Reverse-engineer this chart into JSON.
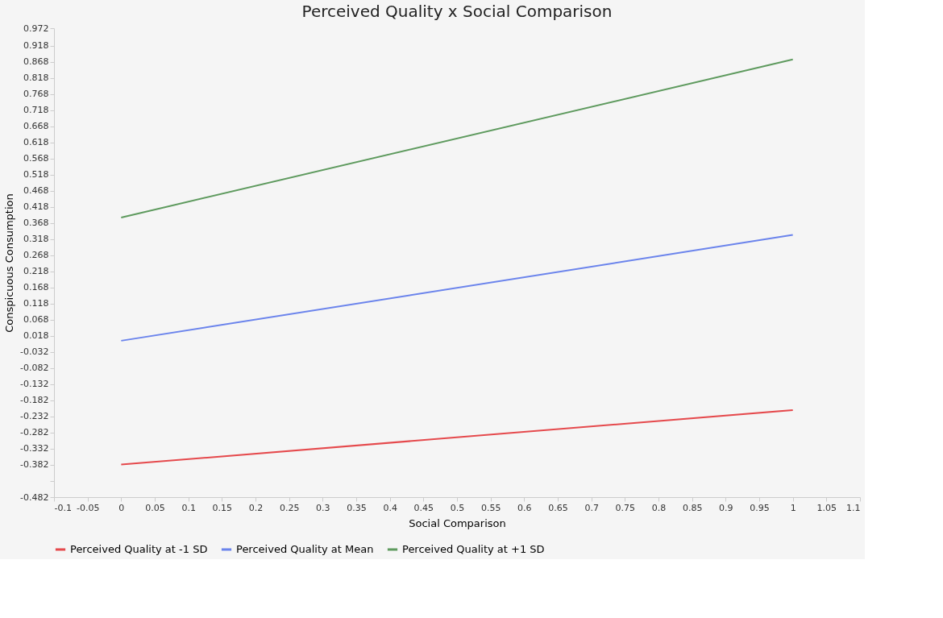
{
  "chart_data": {
    "type": "line",
    "title": "Perceived Quality x Social Comparison",
    "xlabel": "Social Comparison",
    "ylabel": "Conspicuous Consumption",
    "x": [
      0,
      1
    ],
    "series": [
      {
        "name": "Perceived Quality at -1 SD",
        "color": "#e5494c",
        "values": [
          -0.381,
          -0.212
        ]
      },
      {
        "name": "Perceived Quality at Mean",
        "color": "#6b84ec",
        "values": [
          0.003,
          0.331
        ]
      },
      {
        "name": "Perceived Quality at +1 SD",
        "color": "#5e9a5e",
        "values": [
          0.385,
          0.875
        ]
      }
    ],
    "xlim": [
      -0.1,
      1.1
    ],
    "xticks": [
      -0.1,
      -0.05,
      0,
      0.05,
      0.1,
      0.15,
      0.2,
      0.25,
      0.3,
      0.35,
      0.4,
      0.45,
      0.5,
      0.55,
      0.6,
      0.65,
      0.7,
      0.75,
      0.8,
      0.85,
      0.9,
      0.95,
      1,
      1.05,
      1.1
    ],
    "ylim": [
      -0.482,
      0.972
    ],
    "yticks": [
      -0.482,
      {
        "value": -0.432,
        "label": null
      },
      -0.382,
      -0.332,
      -0.282,
      -0.232,
      -0.182,
      -0.132,
      -0.082,
      -0.032,
      0.018,
      0.068,
      0.118,
      0.168,
      0.218,
      0.268,
      0.318,
      0.368,
      0.418,
      0.468,
      0.518,
      0.568,
      0.618,
      0.668,
      0.718,
      0.768,
      0.818,
      0.868,
      0.918,
      0.972
    ],
    "grid": false,
    "legend": "bottom",
    "marker": "none",
    "line_style": "solid"
  }
}
